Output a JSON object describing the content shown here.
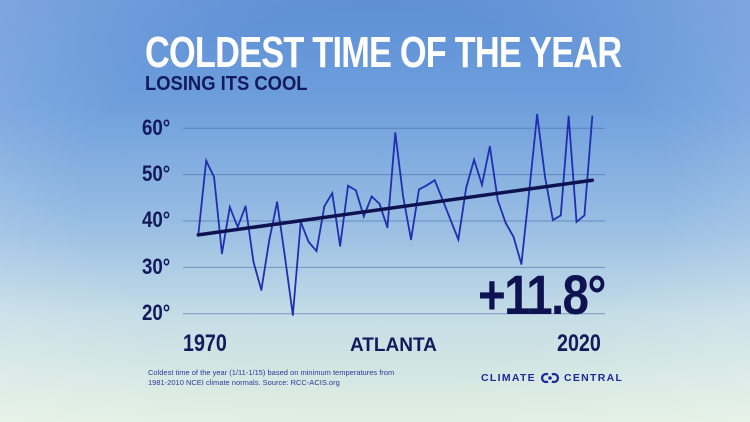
{
  "chart_data": {
    "type": "line",
    "title": "COLDEST TIME OF THE YEAR",
    "subtitle": "LOSING ITS COOL",
    "location": "ATLANTA",
    "annotation": "+11.8°",
    "x_tick_labels": [
      "1970",
      "2020"
    ],
    "y_tick_labels": [
      "60°",
      "50°",
      "40°",
      "30°",
      "20°"
    ],
    "y_ticks": [
      60,
      50,
      40,
      30,
      20
    ],
    "ylim": [
      20,
      60
    ],
    "xlim": [
      1970,
      2020
    ],
    "grid": "horizontal",
    "x": [
      1970,
      1971,
      1972,
      1973,
      1974,
      1975,
      1976,
      1977,
      1978,
      1979,
      1980,
      1981,
      1982,
      1983,
      1984,
      1985,
      1986,
      1987,
      1988,
      1989,
      1990,
      1991,
      1992,
      1993,
      1994,
      1995,
      1996,
      1997,
      1998,
      1999,
      2000,
      2001,
      2002,
      2003,
      2004,
      2005,
      2006,
      2007,
      2008,
      2009,
      2010,
      2011,
      2012,
      2013,
      2014,
      2015,
      2016,
      2017,
      2018,
      2019,
      2020
    ],
    "series": [
      {
        "values": [
          37,
          53,
          49.5,
          33,
          43,
          38.7,
          43.2,
          31.2,
          25.1,
          35.8,
          44.1,
          32.2,
          19.7,
          39.8,
          35.5,
          33.5,
          43.2,
          46,
          34.6,
          47.6,
          46.6,
          41,
          45.3,
          43.7,
          38.6,
          59,
          45.2,
          36,
          46.8,
          47.7,
          48.8,
          44.6,
          40.3,
          36,
          47.2,
          53.2,
          47.8,
          56.1,
          44.5,
          39.6,
          36.6,
          30.7,
          46.5,
          63,
          49.5,
          40.2,
          41.2,
          62.6,
          39.8,
          41.2,
          62.6
        ],
        "color": "#1f2fb0"
      }
    ],
    "trend": {
      "start": 37.0,
      "end": 48.8,
      "color": "#0e1250"
    }
  },
  "footnote": "Coldest time of the year (1/11-1/15) based on minimum temperatures from 1981-2010 NCEI climate normals. Source: RCC-ACIS.org",
  "logo": {
    "left": "CLIMATE",
    "right": "CENTRAL"
  }
}
